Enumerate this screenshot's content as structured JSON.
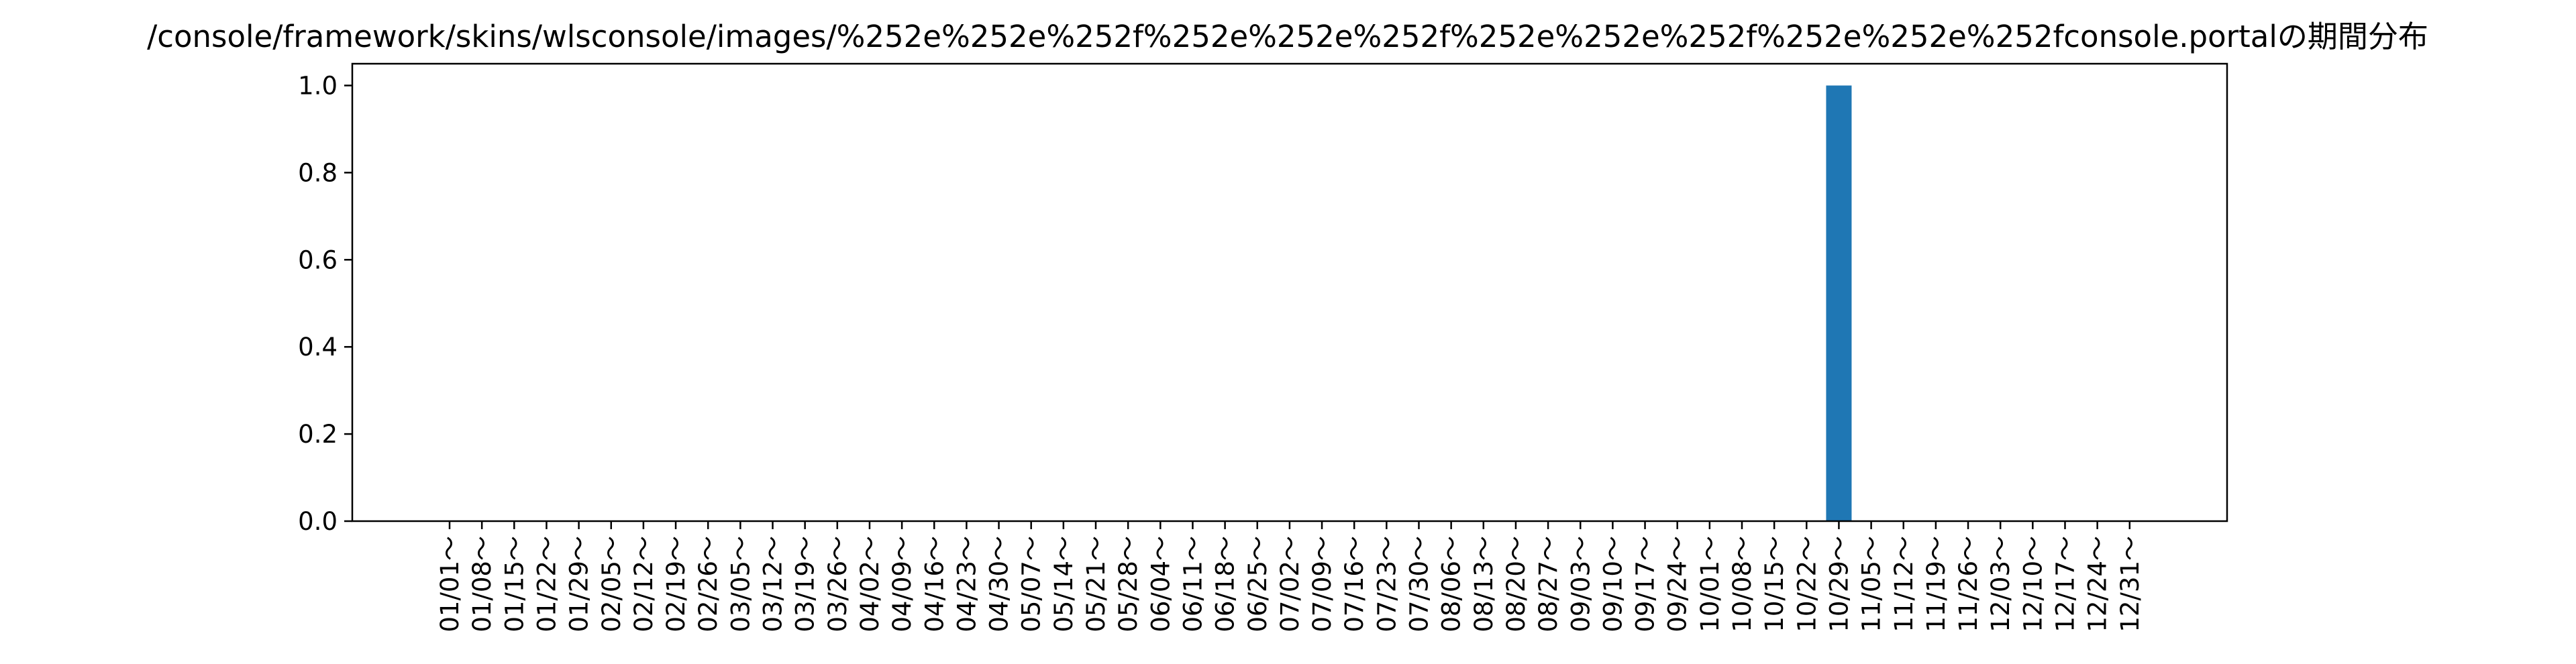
{
  "chart_data": {
    "type": "bar",
    "title": "/console/framework/skins/wlsconsole/images/%252e%252e%252f%252e%252e%252f%252e%252e%252f%252e%252e%252fconsole.portalの期間分布",
    "xlabel": "",
    "ylabel": "",
    "ylim": [
      0,
      1.05
    ],
    "yticks": [
      "0.0",
      "0.2",
      "0.4",
      "0.6",
      "0.8",
      "1.0"
    ],
    "grid": false,
    "legend": "none",
    "bar_color": "#1f77b4",
    "categories": [
      "01/01～",
      "01/08～",
      "01/15～",
      "01/22～",
      "01/29～",
      "02/05～",
      "02/12～",
      "02/19～",
      "02/26～",
      "03/05～",
      "03/12～",
      "03/19～",
      "03/26～",
      "04/02～",
      "04/09～",
      "04/16～",
      "04/23～",
      "04/30～",
      "05/07～",
      "05/14～",
      "05/21～",
      "05/28～",
      "06/04～",
      "06/11～",
      "06/18～",
      "06/25～",
      "07/02～",
      "07/09～",
      "07/16～",
      "07/23～",
      "07/30～",
      "08/06～",
      "08/13～",
      "08/20～",
      "08/27～",
      "09/03～",
      "09/10～",
      "09/17～",
      "09/24～",
      "10/01～",
      "10/08～",
      "10/15～",
      "10/22～",
      "10/29～",
      "11/05～",
      "11/12～",
      "11/19～",
      "11/26～",
      "12/03～",
      "12/10～",
      "12/17～",
      "12/24～",
      "12/31～"
    ],
    "values": [
      0,
      0,
      0,
      0,
      0,
      0,
      0,
      0,
      0,
      0,
      0,
      0,
      0,
      0,
      0,
      0,
      0,
      0,
      0,
      0,
      0,
      0,
      0,
      0,
      0,
      0,
      0,
      0,
      0,
      0,
      0,
      0,
      0,
      0,
      0,
      0,
      0,
      0,
      0,
      0,
      0,
      0,
      0,
      1,
      0,
      0,
      0,
      0,
      0,
      0,
      0,
      0,
      0
    ]
  }
}
